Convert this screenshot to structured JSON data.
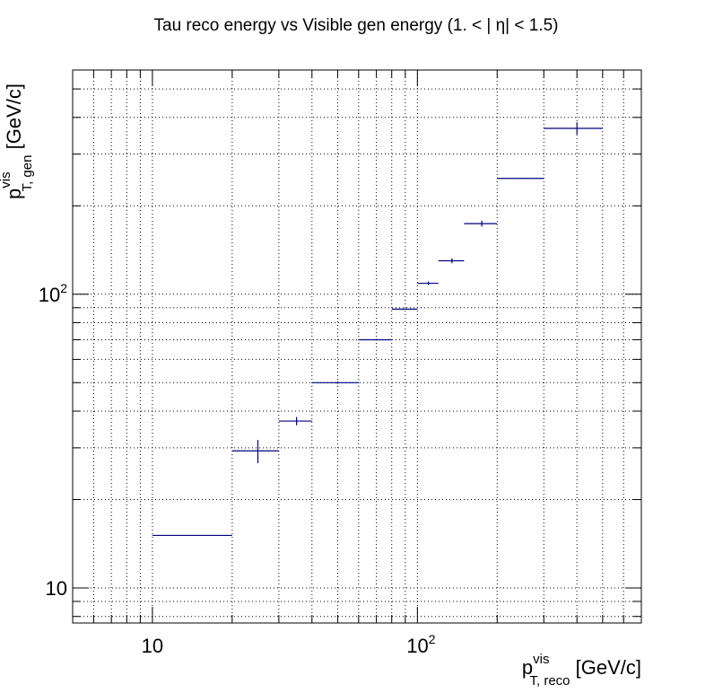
{
  "chart_data": {
    "type": "scatter",
    "title": "Tau reco energy vs Visible gen energy (1. < |   η| < 1.5)",
    "xlabel": {
      "main": "p",
      "sup": "vis",
      "sub": "T, reco",
      "unit": " [GeV/c]"
    },
    "ylabel": {
      "main": "p",
      "sup": "vis",
      "sub": "T, gen",
      "unit": " [GeV/c]"
    },
    "xscale": "log",
    "yscale": "log",
    "xlim": [
      5,
      700
    ],
    "ylim": [
      7.6,
      580
    ],
    "grid": true,
    "x_tick_labels": [
      {
        "value": 10,
        "base": "10",
        "exp": ""
      },
      {
        "value": 100,
        "base": "10",
        "exp": "2"
      }
    ],
    "y_tick_labels": [
      {
        "value": 10,
        "base": "10",
        "exp": ""
      },
      {
        "value": 100,
        "base": "10",
        "exp": "2"
      }
    ],
    "color": "#000080",
    "points": [
      {
        "xlo": 10,
        "xhi": 20,
        "y": 15.1,
        "ylo": 15.1,
        "yhi": 15.1
      },
      {
        "xlo": 20,
        "xhi": 30,
        "y": 29.3,
        "ylo": 26.6,
        "yhi": 31.9
      },
      {
        "xlo": 30,
        "xhi": 40,
        "y": 37.0,
        "ylo": 35.8,
        "yhi": 38.2
      },
      {
        "xlo": 40,
        "xhi": 60,
        "y": 50.0,
        "ylo": 49.6,
        "yhi": 50.4
      },
      {
        "xlo": 60,
        "xhi": 80,
        "y": 70.0,
        "ylo": 69.6,
        "yhi": 70.4
      },
      {
        "xlo": 80,
        "xhi": 100,
        "y": 89.0,
        "ylo": 88.7,
        "yhi": 89.3
      },
      {
        "xlo": 100,
        "xhi": 120,
        "y": 109.0,
        "ylo": 107.5,
        "yhi": 110.5
      },
      {
        "xlo": 120,
        "xhi": 150,
        "y": 130.0,
        "ylo": 127.5,
        "yhi": 132.5
      },
      {
        "xlo": 150,
        "xhi": 200,
        "y": 174.0,
        "ylo": 170.0,
        "yhi": 178.0
      },
      {
        "xlo": 200,
        "xhi": 300,
        "y": 248.0,
        "ylo": 247.0,
        "yhi": 249.0
      },
      {
        "xlo": 300,
        "xhi": 500,
        "y": 367.0,
        "ylo": 350.0,
        "yhi": 385.0
      }
    ]
  }
}
